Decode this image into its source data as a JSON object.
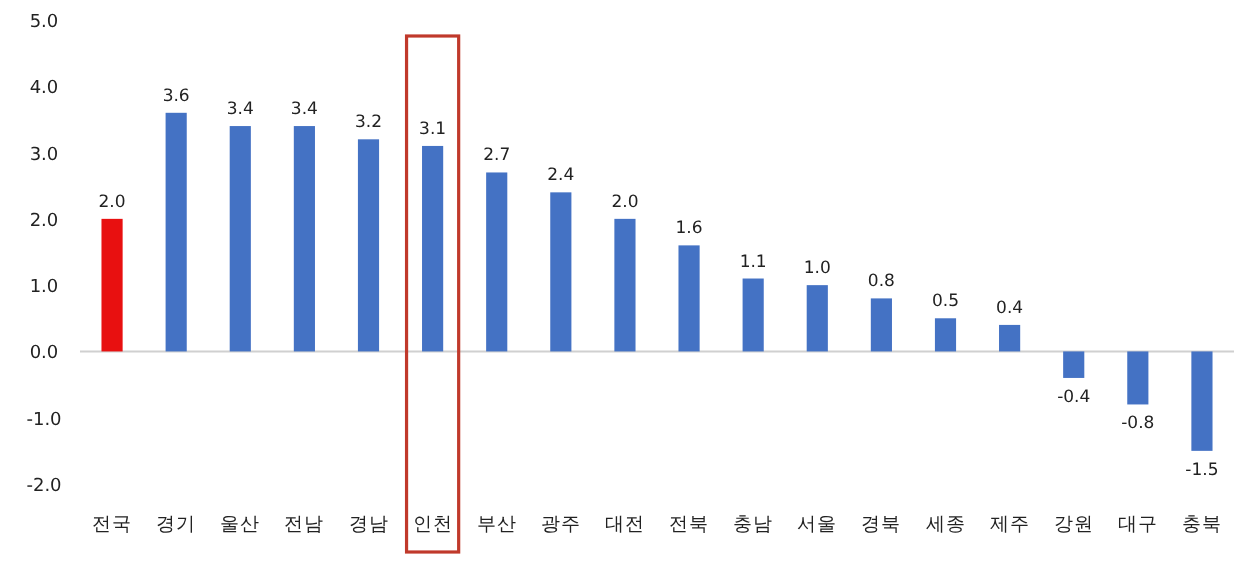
{
  "chart_data": {
    "type": "bar",
    "categories": [
      "전국",
      "경기",
      "울산",
      "전남",
      "경남",
      "인천",
      "부산",
      "광주",
      "대전",
      "전북",
      "충남",
      "서울",
      "경북",
      "세종",
      "제주",
      "강원",
      "대구",
      "충북"
    ],
    "values": [
      2.0,
      3.6,
      3.4,
      3.4,
      3.2,
      3.1,
      2.7,
      2.4,
      2.0,
      1.6,
      1.1,
      1.0,
      0.8,
      0.5,
      0.4,
      -0.4,
      -0.8,
      -1.5
    ],
    "colors": [
      "#e81010",
      "#4472c4",
      "#4472c4",
      "#4472c4",
      "#4472c4",
      "#4472c4",
      "#4472c4",
      "#4472c4",
      "#4472c4",
      "#4472c4",
      "#4472c4",
      "#4472c4",
      "#4472c4",
      "#4472c4",
      "#4472c4",
      "#4472c4",
      "#4472c4",
      "#4472c4"
    ],
    "ylim": [
      -2,
      5
    ],
    "yticks": [
      {
        "value": -2,
        "label": "-2.0"
      },
      {
        "value": -1,
        "label": "-1.0"
      },
      {
        "value": 0,
        "label": "0.0"
      },
      {
        "value": 1,
        "label": "1.0"
      },
      {
        "value": 2,
        "label": "2.0"
      },
      {
        "value": 3,
        "label": "3.0"
      },
      {
        "value": 4,
        "label": "4.0"
      },
      {
        "value": 5,
        "label": "5.0"
      }
    ],
    "value_labels": [
      "2.0",
      "3.6",
      "3.4",
      "3.4",
      "3.2",
      "3.1",
      "2.7",
      "2.4",
      "2.0",
      "1.6",
      "1.1",
      "1.0",
      "0.8",
      "0.5",
      "0.4",
      "-0.4",
      "-0.8",
      "-1.5"
    ]
  }
}
